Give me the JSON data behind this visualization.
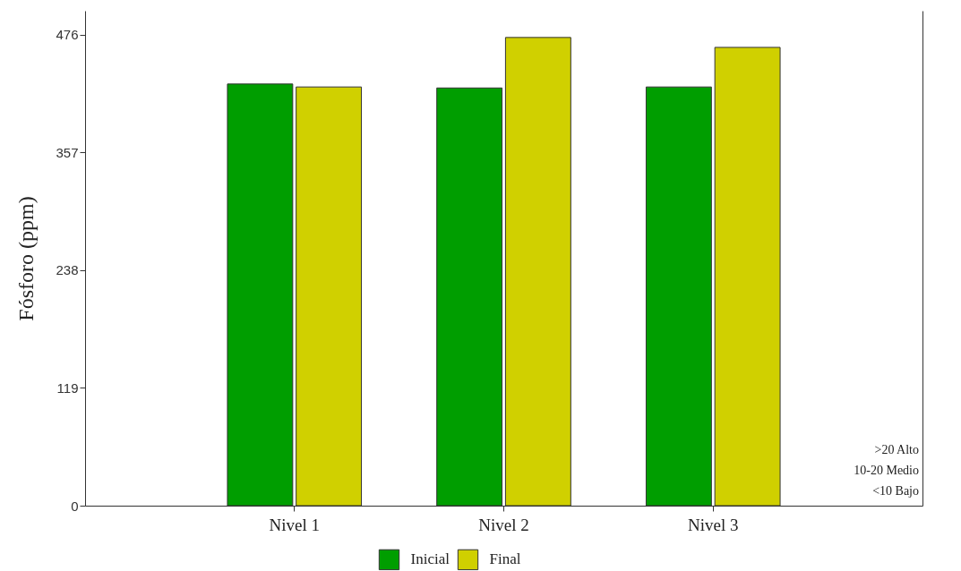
{
  "chart_data": {
    "type": "bar",
    "ylabel": "Fósforo (ppm)",
    "categories": [
      "Nivel 1",
      "Nivel 2",
      "Nivel 3"
    ],
    "series": [
      {
        "name": "Inicial",
        "color": "#009e00",
        "values": [
          426,
          422,
          423
        ]
      },
      {
        "name": "Final",
        "color": "#d0d000",
        "values": [
          423,
          473,
          463
        ]
      }
    ],
    "ylim": [
      0,
      500
    ],
    "yticks": [
      0,
      119,
      238,
      357,
      476
    ],
    "grid": false,
    "legend": "bottom",
    "annotations": [
      ">20 Alto",
      "10-20 Medio",
      "<10 Bajo"
    ]
  }
}
